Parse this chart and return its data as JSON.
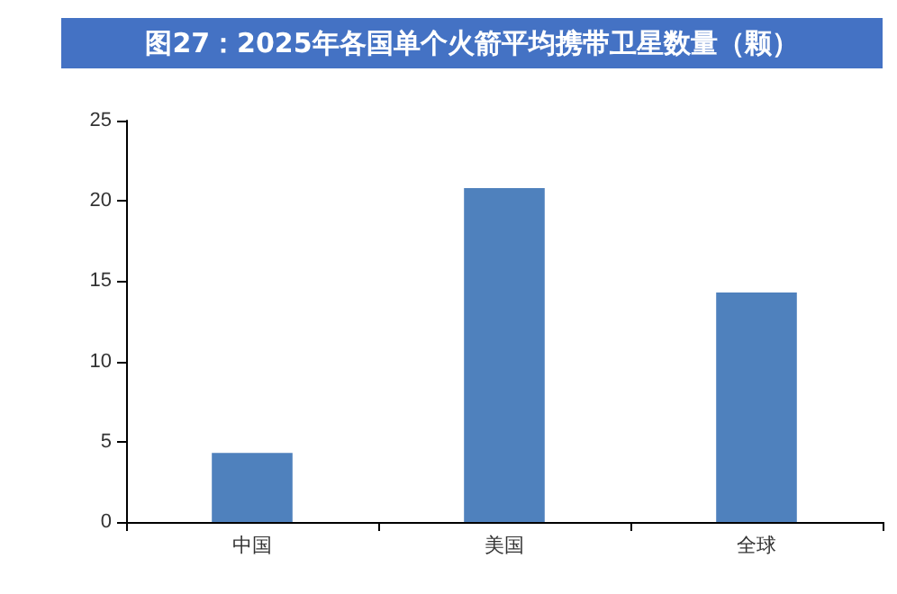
{
  "chart_data": {
    "type": "bar",
    "title": "图27：2025年各国单个火箭平均携带卫星数量（颗）",
    "categories": [
      "中国",
      "美国",
      "全球"
    ],
    "values": [
      4.3,
      20.8,
      14.3
    ],
    "color": "#4f81bd",
    "ylim": [
      0,
      25
    ],
    "yticks": [
      0,
      5,
      10,
      15,
      20,
      25
    ]
  }
}
